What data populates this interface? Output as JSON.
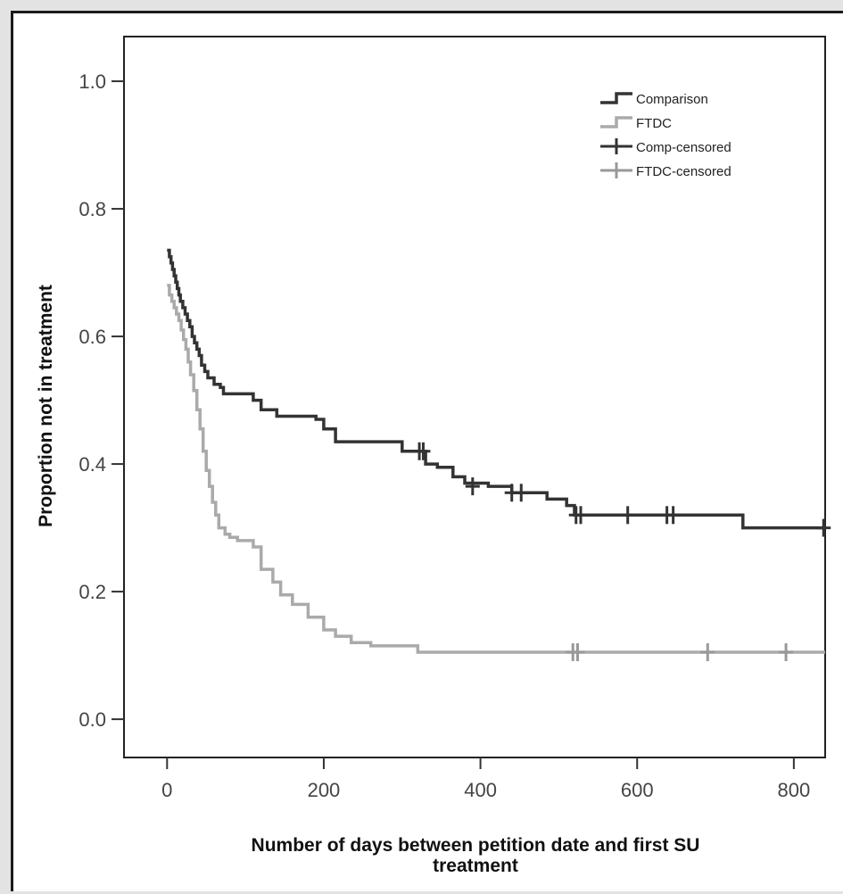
{
  "chart_data": {
    "type": "line",
    "subtype": "kaplan-meier",
    "title": "",
    "xlabel_line1": "Number of days between petition date and first SU",
    "xlabel_line2": "treatment",
    "ylabel": "Proportion not in treatment",
    "xlim": [
      -55,
      840
    ],
    "ylim": [
      -0.06,
      1.07
    ],
    "x_ticks": [
      0,
      200,
      400,
      600,
      800
    ],
    "x_tick_labels": [
      "0",
      "200",
      "400",
      "600",
      "800"
    ],
    "y_ticks": [
      0.0,
      0.2,
      0.4,
      0.6,
      0.8,
      1.0
    ],
    "y_tick_labels": [
      "0.0",
      "0.2",
      "0.4",
      "0.6",
      "0.8",
      "1.0"
    ],
    "grid": false,
    "legend_position": "top-right",
    "legend": [
      {
        "label": "Comparison",
        "kind": "step",
        "color": "#333333"
      },
      {
        "label": "FTDC",
        "kind": "step",
        "color": "#aaaaaa"
      },
      {
        "label": "Comp-censored",
        "kind": "cross",
        "color": "#333333"
      },
      {
        "label": "FTDC-censored",
        "kind": "cross",
        "color": "#999999"
      }
    ],
    "series": [
      {
        "name": "Comparison",
        "color": "#333333",
        "x": [
          0,
          3,
          5,
          7,
          9,
          11,
          13,
          15,
          17,
          20,
          23,
          26,
          29,
          32,
          35,
          38,
          41,
          44,
          48,
          52,
          60,
          68,
          72,
          80,
          95,
          110,
          120,
          140,
          170,
          190,
          200,
          215,
          240,
          270,
          300,
          325,
          330,
          345,
          365,
          380,
          410,
          440,
          460,
          485,
          510,
          520,
          600,
          640,
          650,
          700,
          735,
          840
        ],
        "y": [
          0.735,
          0.725,
          0.715,
          0.705,
          0.695,
          0.685,
          0.675,
          0.665,
          0.655,
          0.645,
          0.635,
          0.625,
          0.615,
          0.6,
          0.59,
          0.58,
          0.57,
          0.555,
          0.545,
          0.535,
          0.525,
          0.52,
          0.51,
          0.51,
          0.51,
          0.5,
          0.485,
          0.475,
          0.475,
          0.47,
          0.455,
          0.435,
          0.435,
          0.435,
          0.42,
          0.42,
          0.4,
          0.395,
          0.38,
          0.37,
          0.365,
          0.355,
          0.355,
          0.345,
          0.335,
          0.32,
          0.32,
          0.32,
          0.32,
          0.32,
          0.3,
          0.3
        ]
      },
      {
        "name": "FTDC",
        "color": "#aaaaaa",
        "x": [
          0,
          3,
          6,
          9,
          12,
          15,
          18,
          21,
          24,
          27,
          30,
          34,
          38,
          42,
          46,
          50,
          54,
          58,
          62,
          66,
          70,
          74,
          80,
          90,
          100,
          110,
          120,
          135,
          145,
          160,
          180,
          200,
          215,
          235,
          260,
          300,
          320,
          840
        ],
        "y": [
          0.68,
          0.665,
          0.655,
          0.645,
          0.635,
          0.625,
          0.61,
          0.595,
          0.58,
          0.56,
          0.54,
          0.515,
          0.485,
          0.455,
          0.42,
          0.39,
          0.365,
          0.34,
          0.32,
          0.3,
          0.3,
          0.29,
          0.285,
          0.28,
          0.28,
          0.27,
          0.235,
          0.215,
          0.195,
          0.18,
          0.16,
          0.14,
          0.13,
          0.12,
          0.115,
          0.115,
          0.105,
          0.105
        ]
      }
    ],
    "censored": [
      {
        "name": "Comp-censored",
        "color": "#333333",
        "x": [
          322,
          327,
          390,
          440,
          452,
          522,
          528,
          588,
          638,
          646,
          838
        ],
        "y": [
          0.42,
          0.42,
          0.365,
          0.355,
          0.355,
          0.32,
          0.32,
          0.32,
          0.32,
          0.32,
          0.3
        ]
      },
      {
        "name": "FTDC-censored",
        "color": "#999999",
        "x": [
          518,
          524,
          690,
          790
        ],
        "y": [
          0.105,
          0.105,
          0.105,
          0.105
        ]
      }
    ]
  }
}
